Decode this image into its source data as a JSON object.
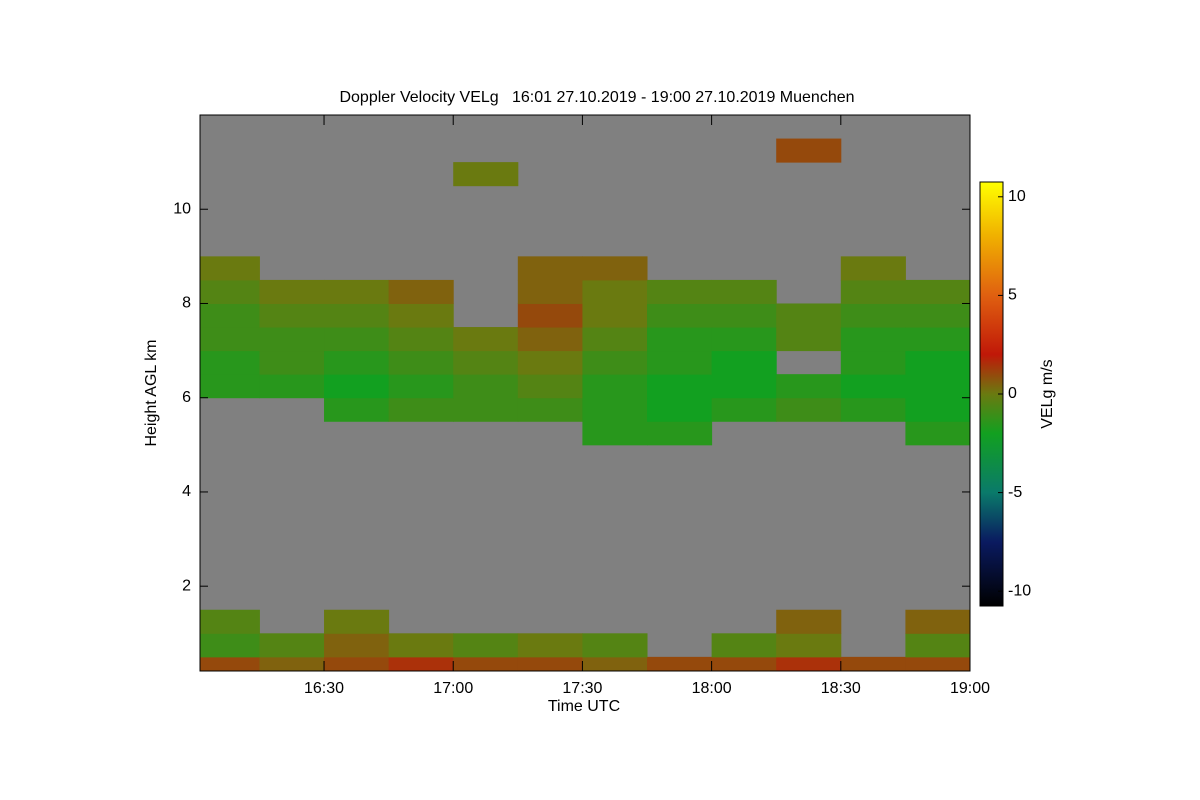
{
  "chart_data": {
    "type": "heatmap",
    "title": "Doppler Velocity VELg   16:01 27.10.2019 - 19:00 27.10.2019 Muenchen",
    "x_label": "Time UTC",
    "y_label": "Height AGL km",
    "colorbar_label": "VELg m/s",
    "background": "#808080",
    "xlim": [
      16.02,
      19.0
    ],
    "xticks": [
      {
        "value": 16.5,
        "label": "16:30"
      },
      {
        "value": 17.0,
        "label": "17:00"
      },
      {
        "value": 17.5,
        "label": "17:30"
      },
      {
        "value": 18.0,
        "label": "18:00"
      },
      {
        "value": 18.5,
        "label": "18:30"
      },
      {
        "value": 19.0,
        "label": "19:00"
      }
    ],
    "ylim": [
      0.2,
      12.0
    ],
    "yticks": [
      2,
      4,
      6,
      8,
      10
    ],
    "clim": [
      -10.75,
      10.75
    ],
    "cticks": [
      -10,
      -5,
      0,
      5,
      10
    ],
    "colorscale": [
      [
        -10.75,
        "#000000"
      ],
      [
        -7.5,
        "#0a1a60"
      ],
      [
        -5,
        "#0a7a6a"
      ],
      [
        -2,
        "#12a020"
      ],
      [
        0,
        "#6a7a10"
      ],
      [
        2,
        "#c01808"
      ],
      [
        5,
        "#e06010"
      ],
      [
        8,
        "#f0b000"
      ],
      [
        10.75,
        "#ffff00"
      ]
    ],
    "x": [
      16.0,
      16.25,
      16.5,
      16.75,
      17.0,
      17.25,
      17.5,
      17.75,
      18.0,
      18.25,
      18.5,
      18.75,
      19.0
    ],
    "y": [
      0.2,
      0.5,
      1.0,
      1.5,
      2.0,
      2.5,
      3.0,
      3.5,
      4.0,
      4.5,
      5.0,
      5.5,
      6.0,
      6.5,
      7.0,
      7.5,
      8.0,
      8.5,
      9.0,
      9.5,
      10.0,
      10.5,
      11.0,
      11.5,
      12.0
    ],
    "values": [
      [
        1,
        0.5,
        1,
        1.5,
        1,
        1,
        0.5,
        1,
        1,
        1.5,
        1,
        1
      ],
      [
        -1,
        -0.5,
        0.5,
        0,
        -0.5,
        0,
        -0.5,
        null,
        -0.5,
        0,
        null,
        -0.5
      ],
      [
        -0.5,
        null,
        0,
        null,
        null,
        null,
        null,
        null,
        null,
        0.5,
        null,
        0.5
      ],
      [
        null,
        null,
        null,
        null,
        null,
        null,
        null,
        null,
        null,
        null,
        null,
        null
      ],
      [
        null,
        null,
        null,
        null,
        null,
        null,
        null,
        null,
        null,
        null,
        null,
        null
      ],
      [
        null,
        null,
        null,
        null,
        null,
        null,
        null,
        null,
        null,
        null,
        null,
        null
      ],
      [
        null,
        null,
        null,
        null,
        null,
        null,
        null,
        null,
        null,
        null,
        null,
        null
      ],
      [
        null,
        null,
        null,
        null,
        null,
        null,
        null,
        null,
        null,
        null,
        null,
        null
      ],
      [
        null,
        null,
        null,
        null,
        null,
        null,
        null,
        null,
        null,
        null,
        null,
        null
      ],
      [
        null,
        null,
        null,
        null,
        null,
        null,
        null,
        null,
        null,
        null,
        null,
        null
      ],
      [
        null,
        null,
        null,
        null,
        null,
        null,
        -1.5,
        -1.5,
        null,
        null,
        null,
        -1.5
      ],
      [
        null,
        null,
        -1.5,
        -1,
        -1,
        -1,
        -1.5,
        -2,
        -1.5,
        -1,
        -1.5,
        -2
      ],
      [
        -1.5,
        -1.5,
        -2,
        -1.5,
        -1,
        -0.5,
        -1.5,
        -2,
        -2,
        -1.5,
        -2,
        -2
      ],
      [
        -1.5,
        -1,
        -1.5,
        -1,
        -0.5,
        0,
        -1,
        -1.5,
        -2,
        null,
        -1.5,
        -2
      ],
      [
        -1,
        -1,
        -1,
        -0.5,
        0,
        0.5,
        -0.5,
        -1.5,
        -1.5,
        -0.5,
        -1.5,
        -1.5
      ],
      [
        -1,
        -0.5,
        -0.5,
        0,
        null,
        1,
        0,
        -1,
        -1,
        -0.5,
        -1,
        -1
      ],
      [
        -0.5,
        0,
        0,
        0.5,
        null,
        0.5,
        0,
        -0.5,
        -0.5,
        null,
        -0.5,
        -0.5
      ],
      [
        0,
        null,
        null,
        null,
        null,
        0.5,
        0.5,
        null,
        null,
        null,
        0,
        null
      ],
      [
        null,
        null,
        null,
        null,
        null,
        null,
        null,
        null,
        null,
        null,
        null,
        null
      ],
      [
        null,
        null,
        null,
        null,
        null,
        null,
        null,
        null,
        null,
        null,
        null,
        null
      ],
      [
        null,
        null,
        null,
        null,
        null,
        null,
        null,
        null,
        null,
        null,
        null,
        null
      ],
      [
        null,
        null,
        null,
        null,
        0,
        null,
        null,
        null,
        null,
        null,
        null,
        null
      ],
      [
        null,
        null,
        null,
        null,
        null,
        null,
        null,
        null,
        null,
        1,
        null,
        null
      ],
      [
        null,
        null,
        null,
        null,
        null,
        null,
        null,
        null,
        null,
        null,
        null,
        null
      ]
    ]
  }
}
